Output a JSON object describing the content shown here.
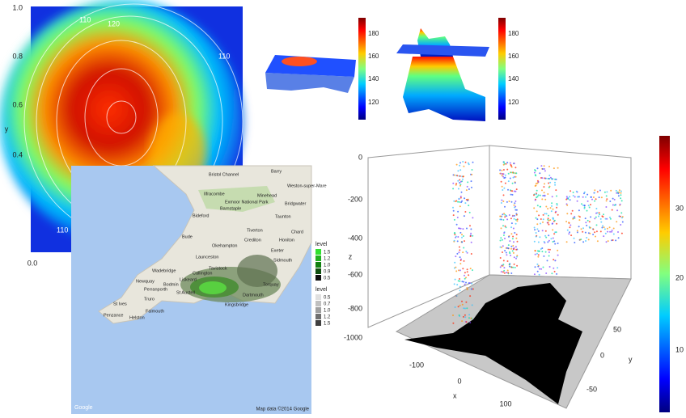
{
  "contour_plot": {
    "y_label": "y",
    "y_ticks": [
      "1.0",
      "0.8",
      "0.6",
      "0.4"
    ],
    "x_ticks": [
      "0.0"
    ],
    "contour_labels": [
      110,
      120,
      110,
      110,
      110
    ]
  },
  "surface_plots": [
    {
      "colorbar_ticks": [
        180,
        160,
        140,
        120
      ]
    },
    {
      "colorbar_ticks": [
        180,
        160,
        140,
        120
      ]
    }
  ],
  "map": {
    "places": [
      "Barry",
      "Bristol Channel",
      "Weston-super-Mare",
      "Ilfracombe",
      "Exmoor National Park",
      "Minehead",
      "Barnstaple",
      "Bridgwater",
      "Bideford",
      "Taunton",
      "Tiverton",
      "Chard",
      "Bude",
      "Okehampton",
      "Crediton",
      "Honiton",
      "Exeter",
      "Launceston",
      "Tavistock",
      "Sidmouth",
      "Wadebridge",
      "Newquay",
      "Bodmin",
      "Callington",
      "Liskeard",
      "Torquay",
      "Perranporth",
      "St Austell",
      "Truro",
      "St Ives",
      "Penzance",
      "Falmouth",
      "Helston",
      "Dartmouth",
      "Kingsbridge"
    ],
    "legends": [
      {
        "title": "level",
        "labels": [
          "1.5",
          "1.2",
          "1.0",
          "0.9",
          "0.5"
        ]
      },
      {
        "title": "level",
        "labels": [
          "0.5",
          "0.7",
          "1.0",
          "1.2",
          "1.5"
        ]
      }
    ],
    "attribution": "Map data ©2014 Google",
    "logo": "Google"
  },
  "volume_plot": {
    "z_label": "z",
    "z_ticks": [
      0,
      -200,
      -400,
      -600,
      -800,
      -1000
    ],
    "x_label": "x",
    "x_ticks": [
      -100,
      0,
      100
    ],
    "y_label": "y",
    "y_ticks": [
      50,
      0,
      -50
    ],
    "colorbar_ticks": [
      30,
      20,
      10
    ]
  }
}
